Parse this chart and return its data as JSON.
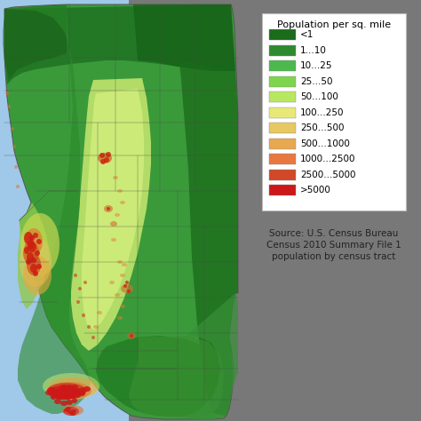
{
  "background_color": "#787878",
  "ocean_color": "#a0c8e8",
  "legend_bg": "#ffffff",
  "legend_title": "Population per sq. mile",
  "legend_labels": [
    "<1",
    "1...10",
    "10...25",
    "25...50",
    "50...100",
    "100...250",
    "250...500",
    "500...1000",
    "1000...2500",
    "2500...5000",
    ">5000"
  ],
  "legend_colors": [
    "#1a6b1a",
    "#2d8b2d",
    "#4db84d",
    "#7fd44d",
    "#b8e860",
    "#e8e878",
    "#e8c860",
    "#e8a850",
    "#e87840",
    "#d04828",
    "#cc1818"
  ],
  "source_text": "Source: U.S. Census Bureau\nCensus 2010 Summary File 1\npopulation by census tract",
  "legend_fontsize": 7.5,
  "source_fontsize": 7.5,
  "title_fontsize": 8.0,
  "fig_w": 4.74,
  "fig_h": 4.74,
  "dpi": 100
}
